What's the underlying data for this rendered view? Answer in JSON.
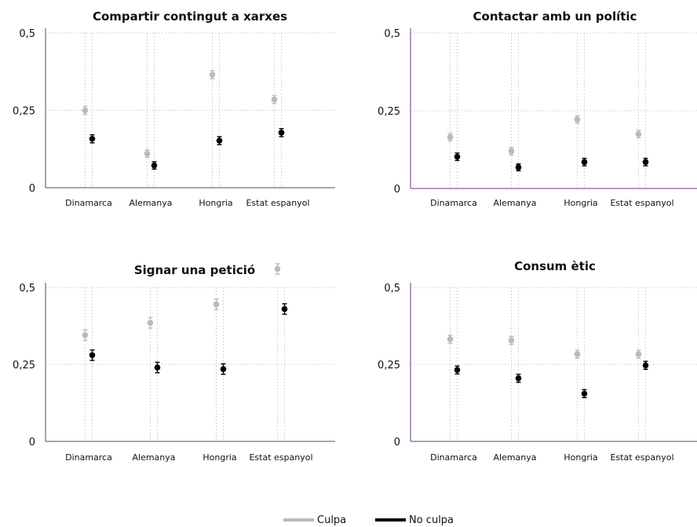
{
  "colors": {
    "culpa": "#bcb8c2",
    "no_culpa": "#000000",
    "axis": "#6d3a80",
    "grid": "#d6d6d6"
  },
  "legend": {
    "position": "bottom-center",
    "items": [
      {
        "label": "Culpa",
        "color": "#bcb8c2"
      },
      {
        "label": "No culpa",
        "color": "#000000"
      }
    ]
  },
  "chart_data": [
    {
      "type": "scatter",
      "title": "Compartir contingut a xarxes",
      "categories": [
        "Dinamarca",
        "Alemanya",
        "Hongria",
        "Estat espanyol"
      ],
      "ylim": [
        0,
        0.5
      ],
      "yticks": [
        {
          "value": 0,
          "label": "0"
        },
        {
          "value": 0.25,
          "label": "0,25"
        },
        {
          "value": 0.5,
          "label": "0,5"
        }
      ],
      "grid": true,
      "series": [
        {
          "name": "Culpa",
          "values": [
            0.25,
            0.11,
            0.365,
            0.285
          ],
          "err": [
            0.013,
            0.012,
            0.013,
            0.013
          ]
        },
        {
          "name": "No culpa",
          "values": [
            0.158,
            0.072,
            0.152,
            0.178
          ],
          "err": [
            0.013,
            0.012,
            0.013,
            0.013
          ]
        }
      ]
    },
    {
      "type": "scatter",
      "title": "Contactar amb un polític",
      "categories": [
        "Dinamarca",
        "Alemanya",
        "Hongria",
        "Estat espanyol"
      ],
      "ylim": [
        0,
        0.5
      ],
      "yticks": [
        {
          "value": 0,
          "label": "0"
        },
        {
          "value": 0.25,
          "label": "0,25"
        },
        {
          "value": 0.5,
          "label": "0,5"
        }
      ],
      "grid": true,
      "series": [
        {
          "name": "Culpa",
          "values": [
            0.165,
            0.12,
            0.222,
            0.175
          ],
          "err": [
            0.012,
            0.012,
            0.012,
            0.012
          ]
        },
        {
          "name": "No culpa",
          "values": [
            0.102,
            0.068,
            0.085,
            0.085
          ],
          "err": [
            0.012,
            0.011,
            0.012,
            0.012
          ]
        }
      ]
    },
    {
      "type": "scatter",
      "title": "Signar una petició",
      "categories": [
        "Dinamarca",
        "Alemanya",
        "Hongria",
        "Estat espanyol"
      ],
      "ylim": [
        0,
        0.5
      ],
      "yticks": [
        {
          "value": 0,
          "label": "0"
        },
        {
          "value": 0.25,
          "label": "0,25"
        },
        {
          "value": 0.5,
          "label": "0,5"
        }
      ],
      "grid": true,
      "series": [
        {
          "name": "Culpa",
          "values": [
            0.345,
            0.385,
            0.445,
            0.56
          ],
          "err": [
            0.017,
            0.017,
            0.017,
            0.017
          ]
        },
        {
          "name": "No culpa",
          "values": [
            0.28,
            0.24,
            0.235,
            0.43
          ],
          "err": [
            0.017,
            0.017,
            0.017,
            0.017
          ]
        }
      ]
    },
    {
      "type": "scatter",
      "title": "Consum ètic",
      "categories": [
        "Dinamarca",
        "Alemanya",
        "Hongria",
        "Estat espanyol"
      ],
      "ylim": [
        0,
        0.5
      ],
      "yticks": [
        {
          "value": 0,
          "label": "0"
        },
        {
          "value": 0.25,
          "label": "0,25"
        },
        {
          "value": 0.5,
          "label": "0,5"
        }
      ],
      "grid": true,
      "series": [
        {
          "name": "Culpa",
          "values": [
            0.332,
            0.328,
            0.283,
            0.283
          ],
          "err": [
            0.013,
            0.013,
            0.013,
            0.013
          ]
        },
        {
          "name": "No culpa",
          "values": [
            0.232,
            0.205,
            0.155,
            0.247
          ],
          "err": [
            0.013,
            0.013,
            0.013,
            0.013
          ]
        }
      ]
    }
  ]
}
